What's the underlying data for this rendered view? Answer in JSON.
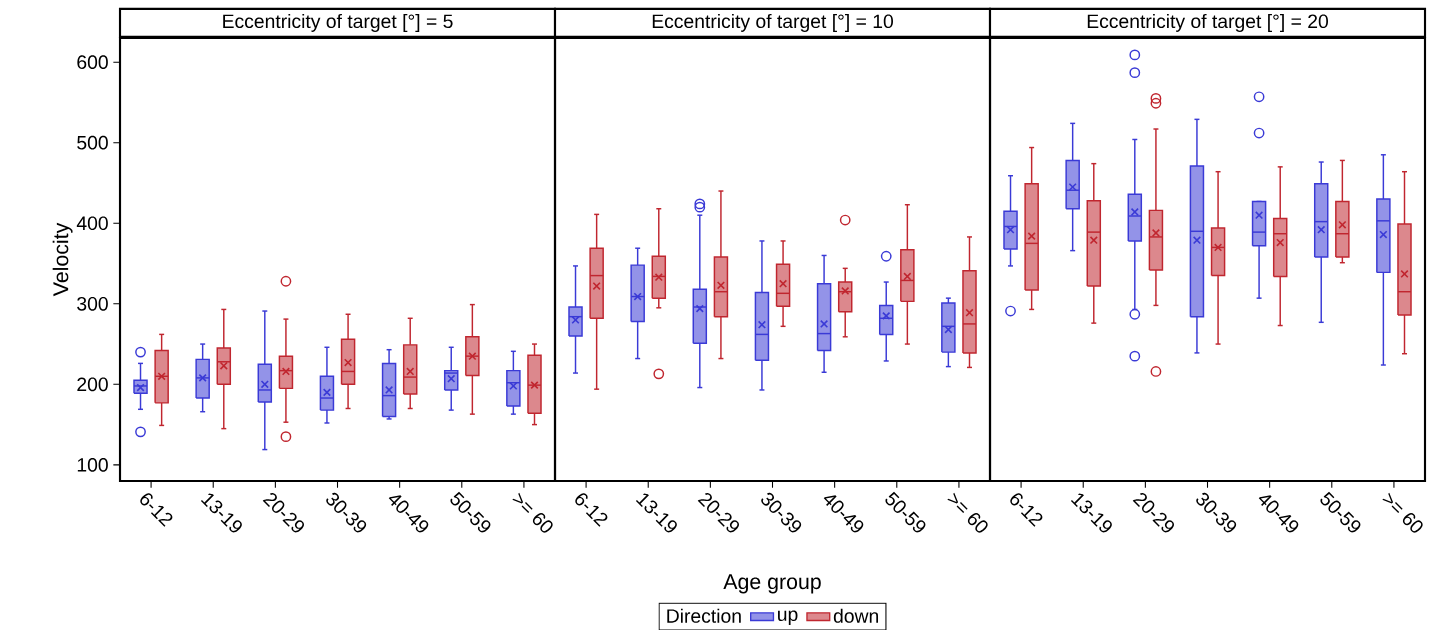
{
  "chart_data": [
    {
      "type": "box",
      "title": "Eccentricity of target [°] = 5",
      "ylabel": "Velocity",
      "categories": [
        "6-12",
        "13-19",
        "20-29",
        "30-39",
        "40-49",
        "50-59",
        ">= 60"
      ],
      "ylim": [
        80,
        630
      ],
      "yticks": [
        100,
        200,
        300,
        400,
        500,
        600
      ],
      "marker": "circle",
      "series": [
        {
          "color": "#3a3ad6",
          "boxes": [
            {
              "low": 169,
              "q1": 189,
              "median": 198,
              "q3": 205,
              "high": 226,
              "mean": 196,
              "outliers": [
                240,
                141
              ]
            },
            {
              "low": 166,
              "q1": 183,
              "median": 208,
              "q3": 231,
              "high": 250,
              "mean": 208
            },
            {
              "low": 119,
              "q1": 178,
              "median": 193,
              "q3": 225,
              "high": 291,
              "mean": 200
            },
            {
              "low": 152,
              "q1": 168,
              "median": 183,
              "q3": 210,
              "high": 246,
              "mean": 190
            },
            {
              "low": 157,
              "q1": 160,
              "median": 186,
              "q3": 226,
              "high": 243,
              "mean": 193
            },
            {
              "low": 168,
              "q1": 193,
              "median": 214,
              "q3": 217,
              "high": 246,
              "mean": 207
            },
            {
              "low": 163,
              "q1": 173,
              "median": 202,
              "q3": 217,
              "high": 241,
              "mean": 198
            }
          ]
        },
        {
          "color": "#c0262f",
          "boxes": [
            {
              "low": 149,
              "q1": 177,
              "median": 210,
              "q3": 242,
              "high": 262,
              "mean": 210
            },
            {
              "low": 145,
              "q1": 200,
              "median": 228,
              "q3": 245,
              "high": 293,
              "mean": 223
            },
            {
              "low": 153,
              "q1": 195,
              "median": 217,
              "q3": 235,
              "high": 281,
              "mean": 216,
              "outliers": [
                135,
                328
              ]
            },
            {
              "low": 170,
              "q1": 200,
              "median": 216,
              "q3": 256,
              "high": 287,
              "mean": 227
            },
            {
              "low": 170,
              "q1": 188,
              "median": 209,
              "q3": 249,
              "high": 282,
              "mean": 216
            },
            {
              "low": 163,
              "q1": 211,
              "median": 235,
              "q3": 259,
              "high": 299,
              "mean": 235
            },
            {
              "low": 150,
              "q1": 164,
              "median": 199,
              "q3": 236,
              "high": 250,
              "mean": 199
            }
          ]
        }
      ]
    },
    {
      "type": "box",
      "title": "Eccentricity of target [°] = 10",
      "xlabel": "Age group",
      "legend_title": "Direction",
      "legend": "bottom",
      "tick_labels": "x",
      "categories": [
        "6-12",
        "13-19",
        "20-29",
        "30-39",
        "40-49",
        "50-59",
        ">= 60"
      ],
      "ylim": [
        80,
        630
      ],
      "yticks": [
        100,
        200,
        300,
        400,
        500,
        600
      ],
      "marker": "circle",
      "series": [
        {
          "name": "up",
          "color": "#3a3ad6",
          "boxes": [
            {
              "low": 214,
              "q1": 260,
              "median": 284,
              "q3": 296,
              "high": 347,
              "mean": 280
            },
            {
              "low": 232,
              "q1": 278,
              "median": 309,
              "q3": 348,
              "high": 369,
              "mean": 309
            },
            {
              "low": 196,
              "q1": 251,
              "median": 296,
              "q3": 318,
              "high": 410,
              "mean": 294,
              "outliers": [
                420,
                424
              ]
            },
            {
              "low": 193,
              "q1": 230,
              "median": 262,
              "q3": 314,
              "high": 378,
              "mean": 274
            },
            {
              "low": 215,
              "q1": 242,
              "median": 263,
              "q3": 325,
              "high": 360,
              "mean": 275
            },
            {
              "low": 229,
              "q1": 262,
              "median": 282,
              "q3": 298,
              "high": 327,
              "mean": 285,
              "outliers": [
                359
              ]
            },
            {
              "low": 222,
              "q1": 240,
              "median": 272,
              "q3": 301,
              "high": 307,
              "mean": 268
            }
          ]
        },
        {
          "name": "down",
          "color": "#c0262f",
          "boxes": [
            {
              "low": 194,
              "q1": 282,
              "median": 335,
              "q3": 369,
              "high": 411,
              "mean": 322
            },
            {
              "low": 295,
              "q1": 307,
              "median": 334,
              "q3": 359,
              "high": 418,
              "mean": 333,
              "outliers": [
                213
              ]
            },
            {
              "low": 232,
              "q1": 284,
              "median": 315,
              "q3": 358,
              "high": 440,
              "mean": 323
            },
            {
              "low": 272,
              "q1": 297,
              "median": 313,
              "q3": 349,
              "high": 378,
              "mean": 325
            },
            {
              "low": 259,
              "q1": 290,
              "median": 315,
              "q3": 327,
              "high": 344,
              "mean": 316,
              "outliers": [
                404
              ]
            },
            {
              "low": 250,
              "q1": 303,
              "median": 329,
              "q3": 367,
              "high": 423,
              "mean": 334
            },
            {
              "low": 221,
              "q1": 239,
              "median": 275,
              "q3": 341,
              "high": 383,
              "mean": 289
            }
          ]
        }
      ]
    },
    {
      "type": "box",
      "title": "Eccentricity of target [°] = 20",
      "tick_labels": "x",
      "categories": [
        "6-12",
        "13-19",
        "20-29",
        "30-39",
        "40-49",
        "50-59",
        ">= 60"
      ],
      "ylim": [
        80,
        630
      ],
      "yticks": [
        100,
        200,
        300,
        400,
        500,
        600
      ],
      "marker": "circle",
      "series": [
        {
          "color": "#3a3ad6",
          "boxes": [
            {
              "low": 347,
              "q1": 368,
              "median": 396,
              "q3": 415,
              "high": 459,
              "mean": 392,
              "outliers": [
                291
              ]
            },
            {
              "low": 366,
              "q1": 418,
              "median": 441,
              "q3": 478,
              "high": 524,
              "mean": 445
            },
            {
              "low": 293,
              "q1": 378,
              "median": 409,
              "q3": 436,
              "high": 504,
              "mean": 414,
              "outliers": [
                609,
                587,
                287,
                235
              ]
            },
            {
              "low": 239,
              "q1": 284,
              "median": 390,
              "q3": 471,
              "high": 529,
              "mean": 379
            },
            {
              "low": 307,
              "q1": 372,
              "median": 389,
              "q3": 427,
              "high": 427,
              "mean": 410,
              "outliers": [
                557,
                512
              ]
            },
            {
              "low": 277,
              "q1": 358,
              "median": 402,
              "q3": 449,
              "high": 476,
              "mean": 392
            },
            {
              "low": 224,
              "q1": 339,
              "median": 403,
              "q3": 430,
              "high": 485,
              "mean": 386
            }
          ]
        },
        {
          "color": "#c0262f",
          "boxes": [
            {
              "low": 293,
              "q1": 317,
              "median": 375,
              "q3": 449,
              "high": 494,
              "mean": 384
            },
            {
              "low": 276,
              "q1": 322,
              "median": 389,
              "q3": 428,
              "high": 474,
              "mean": 379
            },
            {
              "low": 298,
              "q1": 342,
              "median": 383,
              "q3": 416,
              "high": 517,
              "mean": 388,
              "outliers": [
                555,
                549,
                216
              ]
            },
            {
              "low": 250,
              "q1": 335,
              "median": 370,
              "q3": 394,
              "high": 464,
              "mean": 370
            },
            {
              "low": 273,
              "q1": 334,
              "median": 387,
              "q3": 406,
              "high": 470,
              "mean": 376
            },
            {
              "low": 351,
              "q1": 358,
              "median": 387,
              "q3": 427,
              "high": 478,
              "mean": 398
            },
            {
              "low": 238,
              "q1": 286,
              "median": 315,
              "q3": 399,
              "high": 464,
              "mean": 337
            }
          ]
        }
      ]
    }
  ]
}
